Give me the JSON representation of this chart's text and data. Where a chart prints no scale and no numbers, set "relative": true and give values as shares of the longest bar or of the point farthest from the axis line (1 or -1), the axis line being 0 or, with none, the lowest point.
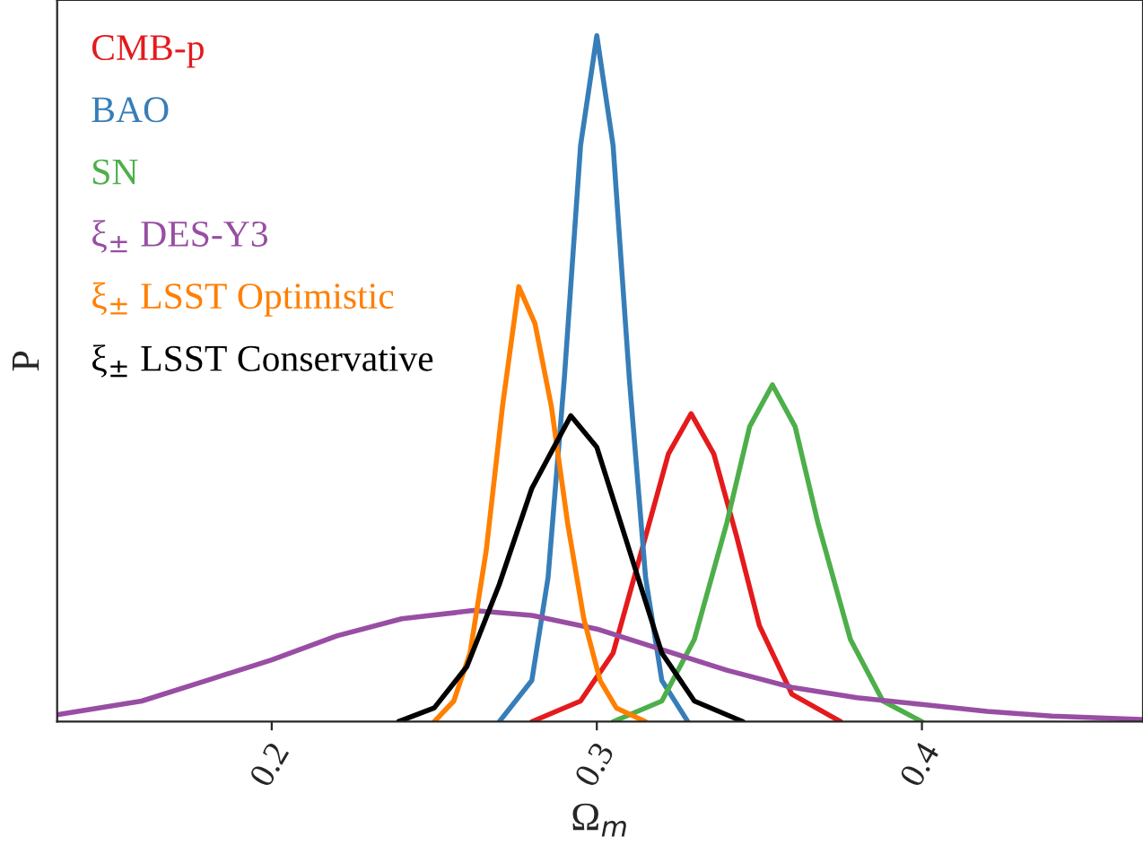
{
  "chart_data": {
    "type": "line",
    "relative": true,
    "xlabel": "Ω$_{m}$",
    "ylabel": "P",
    "xlim": [
      0.134,
      0.468
    ],
    "xticks": [
      0.2,
      0.3,
      0.4
    ],
    "tick_labels": "x",
    "legend": "top left",
    "grid": false,
    "series": [
      {
        "name": "CMB-p",
        "color": "#e41a1c",
        "x": [
          0.28,
          0.295,
          0.305,
          0.315,
          0.322,
          0.329,
          0.336,
          0.343,
          0.35,
          0.36,
          0.375
        ],
        "values": [
          0.0,
          0.03,
          0.1,
          0.27,
          0.39,
          0.449,
          0.39,
          0.27,
          0.14,
          0.04,
          0.0
        ]
      },
      {
        "name": "BAO",
        "color": "#377eb8",
        "x": [
          0.27,
          0.28,
          0.285,
          0.29,
          0.295,
          0.3,
          0.305,
          0.31,
          0.315,
          0.32,
          0.328
        ],
        "values": [
          0.0,
          0.06,
          0.21,
          0.5,
          0.84,
          1.0,
          0.84,
          0.5,
          0.21,
          0.06,
          0.0
        ]
      },
      {
        "name": "SN",
        "color": "#4daf4a",
        "x": [
          0.305,
          0.32,
          0.33,
          0.34,
          0.347,
          0.354,
          0.361,
          0.368,
          0.378,
          0.388,
          0.4
        ],
        "values": [
          0.0,
          0.03,
          0.12,
          0.29,
          0.43,
          0.491,
          0.43,
          0.29,
          0.12,
          0.03,
          0.0
        ]
      },
      {
        "name": "ξ$_{±}$ DES-Y3",
        "color": "#984ea3",
        "x": [
          0.134,
          0.16,
          0.18,
          0.2,
          0.22,
          0.24,
          0.262,
          0.28,
          0.3,
          0.32,
          0.34,
          0.36,
          0.38,
          0.4,
          0.42,
          0.44,
          0.468
        ],
        "values": [
          0.01,
          0.03,
          0.06,
          0.09,
          0.125,
          0.15,
          0.162,
          0.155,
          0.135,
          0.105,
          0.075,
          0.05,
          0.035,
          0.025,
          0.015,
          0.008,
          0.003
        ]
      },
      {
        "name": "ξ$_{±}$ LSST Optimistic",
        "color": "#ff7f00",
        "x": [
          0.25,
          0.256,
          0.261,
          0.266,
          0.271,
          0.276,
          0.281,
          0.286,
          0.291,
          0.296,
          0.301,
          0.306,
          0.315
        ],
        "values": [
          0.0,
          0.03,
          0.1,
          0.25,
          0.46,
          0.634,
          0.58,
          0.46,
          0.29,
          0.15,
          0.06,
          0.02,
          0.0
        ]
      },
      {
        "name": "ξ$_{±}$ LSST Conservative",
        "color": "#000000",
        "x": [
          0.239,
          0.25,
          0.26,
          0.27,
          0.28,
          0.292,
          0.3,
          0.31,
          0.32,
          0.33,
          0.345
        ],
        "values": [
          0.0,
          0.02,
          0.08,
          0.2,
          0.34,
          0.446,
          0.4,
          0.25,
          0.1,
          0.03,
          0.0
        ]
      }
    ]
  }
}
